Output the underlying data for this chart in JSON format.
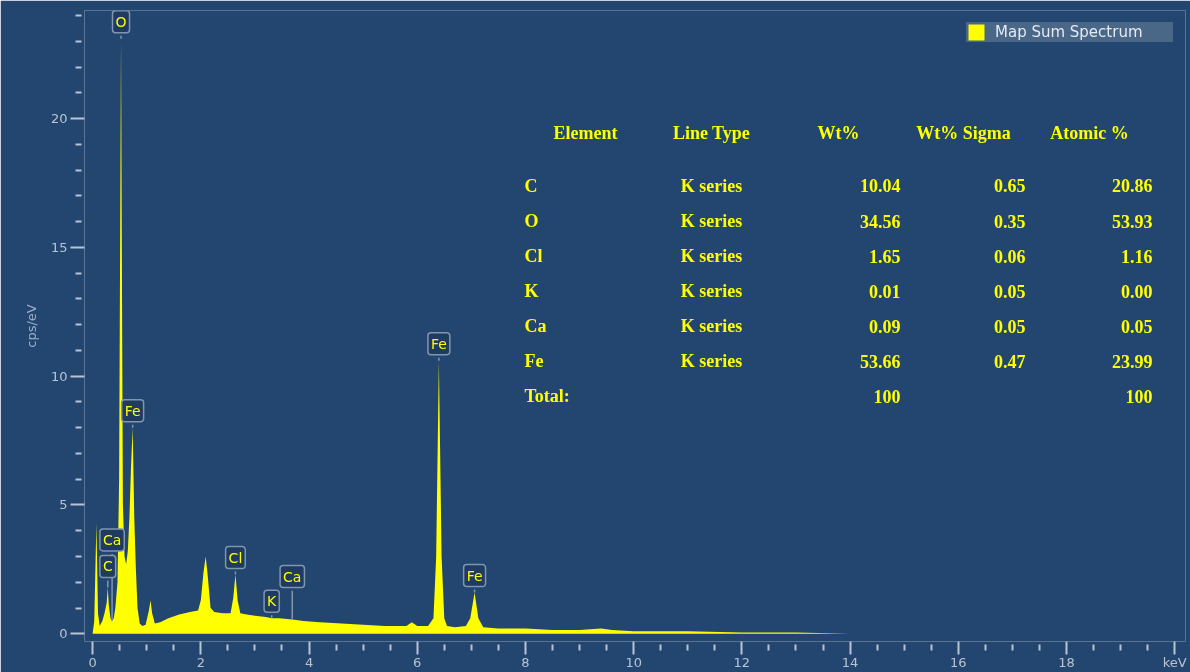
{
  "chart_data": {
    "type": "area",
    "x": [
      0,
      0.03,
      0.07,
      0.1,
      0.13,
      0.18,
      0.22,
      0.26,
      0.28,
      0.3,
      0.33,
      0.36,
      0.39,
      0.42,
      0.46,
      0.49,
      0.51,
      0.525,
      0.54,
      0.56,
      0.59,
      0.62,
      0.65,
      0.68,
      0.71,
      0.74,
      0.77,
      0.8,
      0.83,
      0.87,
      0.92,
      0.98,
      1.04,
      1.07,
      1.1,
      1.15,
      1.25,
      1.4,
      1.6,
      1.8,
      1.95,
      2.0,
      2.05,
      2.09,
      2.13,
      2.18,
      2.25,
      2.4,
      2.55,
      2.6,
      2.64,
      2.68,
      2.73,
      2.85,
      3.0,
      3.2,
      3.31,
      3.45,
      3.69,
      3.9,
      4.2,
      4.6,
      5.0,
      5.4,
      5.8,
      5.9,
      6.0,
      6.2,
      6.3,
      6.35,
      6.4,
      6.45,
      6.5,
      6.55,
      6.7,
      6.9,
      6.98,
      7.06,
      7.13,
      7.22,
      7.5,
      8.0,
      8.5,
      9.0,
      9.4,
      9.6,
      10.0,
      11.0,
      12.0,
      13.0,
      14.0,
      14.9,
      15.0
    ],
    "series": [
      {
        "name": "Map Sum Spectrum",
        "color": "#ffff00",
        "values": [
          0,
          0.5,
          4.3,
          0.8,
          0.3,
          0.5,
          0.8,
          1.2,
          1.8,
          1.1,
          0.6,
          0.5,
          0.6,
          1.0,
          2.0,
          6.0,
          16.0,
          23.1,
          15.0,
          5.0,
          3.0,
          2.7,
          3.2,
          4.5,
          6.5,
          8.0,
          4.5,
          2.5,
          1.0,
          0.4,
          0.3,
          0.35,
          0.9,
          1.3,
          0.8,
          0.4,
          0.45,
          0.6,
          0.75,
          0.85,
          0.9,
          1.3,
          2.4,
          3.0,
          2.2,
          1.0,
          0.85,
          0.8,
          0.8,
          1.4,
          2.3,
          1.3,
          0.8,
          0.75,
          0.7,
          0.65,
          0.6,
          0.6,
          0.55,
          0.5,
          0.45,
          0.4,
          0.35,
          0.3,
          0.3,
          0.45,
          0.3,
          0.3,
          0.6,
          3.0,
          10.6,
          3.0,
          0.6,
          0.3,
          0.25,
          0.3,
          0.6,
          1.6,
          0.6,
          0.25,
          0.2,
          0.2,
          0.15,
          0.15,
          0.2,
          0.15,
          0.1,
          0.1,
          0.05,
          0.05,
          0,
          0,
          0
        ]
      }
    ],
    "xlim": [
      -0.15,
      20.2
    ],
    "ylim": [
      -0.3,
      24.2
    ],
    "xticks": [
      0,
      2,
      4,
      6,
      8,
      10,
      12,
      14,
      16,
      18,
      {
        "value": 20,
        "label": "keV"
      }
    ],
    "yticks": [
      0,
      5,
      10,
      15,
      20
    ],
    "ylabel": "cps/eV",
    "legend": "top right",
    "annotations": [
      {
        "text": "O",
        "x": 0.525,
        "y": 23.1
      },
      {
        "text": "Fe",
        "x": 0.74,
        "y": 8.0
      },
      {
        "text": "C",
        "x": 0.28,
        "y": 1.8
      },
      {
        "text": "Ca",
        "x": 0.36,
        "y": 0.5
      },
      {
        "text": "Cl",
        "x": 2.64,
        "y": 2.3
      },
      {
        "text": "K",
        "x": 3.31,
        "y": 0.6
      },
      {
        "text": "Ca",
        "x": 3.69,
        "y": 0.55
      },
      {
        "text": "Fe",
        "x": 6.4,
        "y": 10.6
      },
      {
        "text": "Fe",
        "x": 7.06,
        "y": 1.6
      },
      "Element",
      "Line Type",
      "Wt%",
      "Wt% Sigma",
      "Atomic %",
      "C",
      "K series",
      "10.04",
      "0.65",
      "20.86",
      "O",
      "K series",
      "34.56",
      "0.35",
      "53.93",
      "Cl",
      "K series",
      "1.65",
      "0.06",
      "1.16",
      "K",
      "K series",
      "0.01",
      "0.05",
      "0.00",
      "Ca",
      "K series",
      "0.09",
      "0.05",
      "0.05",
      "Fe",
      "K series",
      "53.66",
      "0.47",
      "23.99",
      "Total:",
      "100",
      "100"
    ]
  }
}
